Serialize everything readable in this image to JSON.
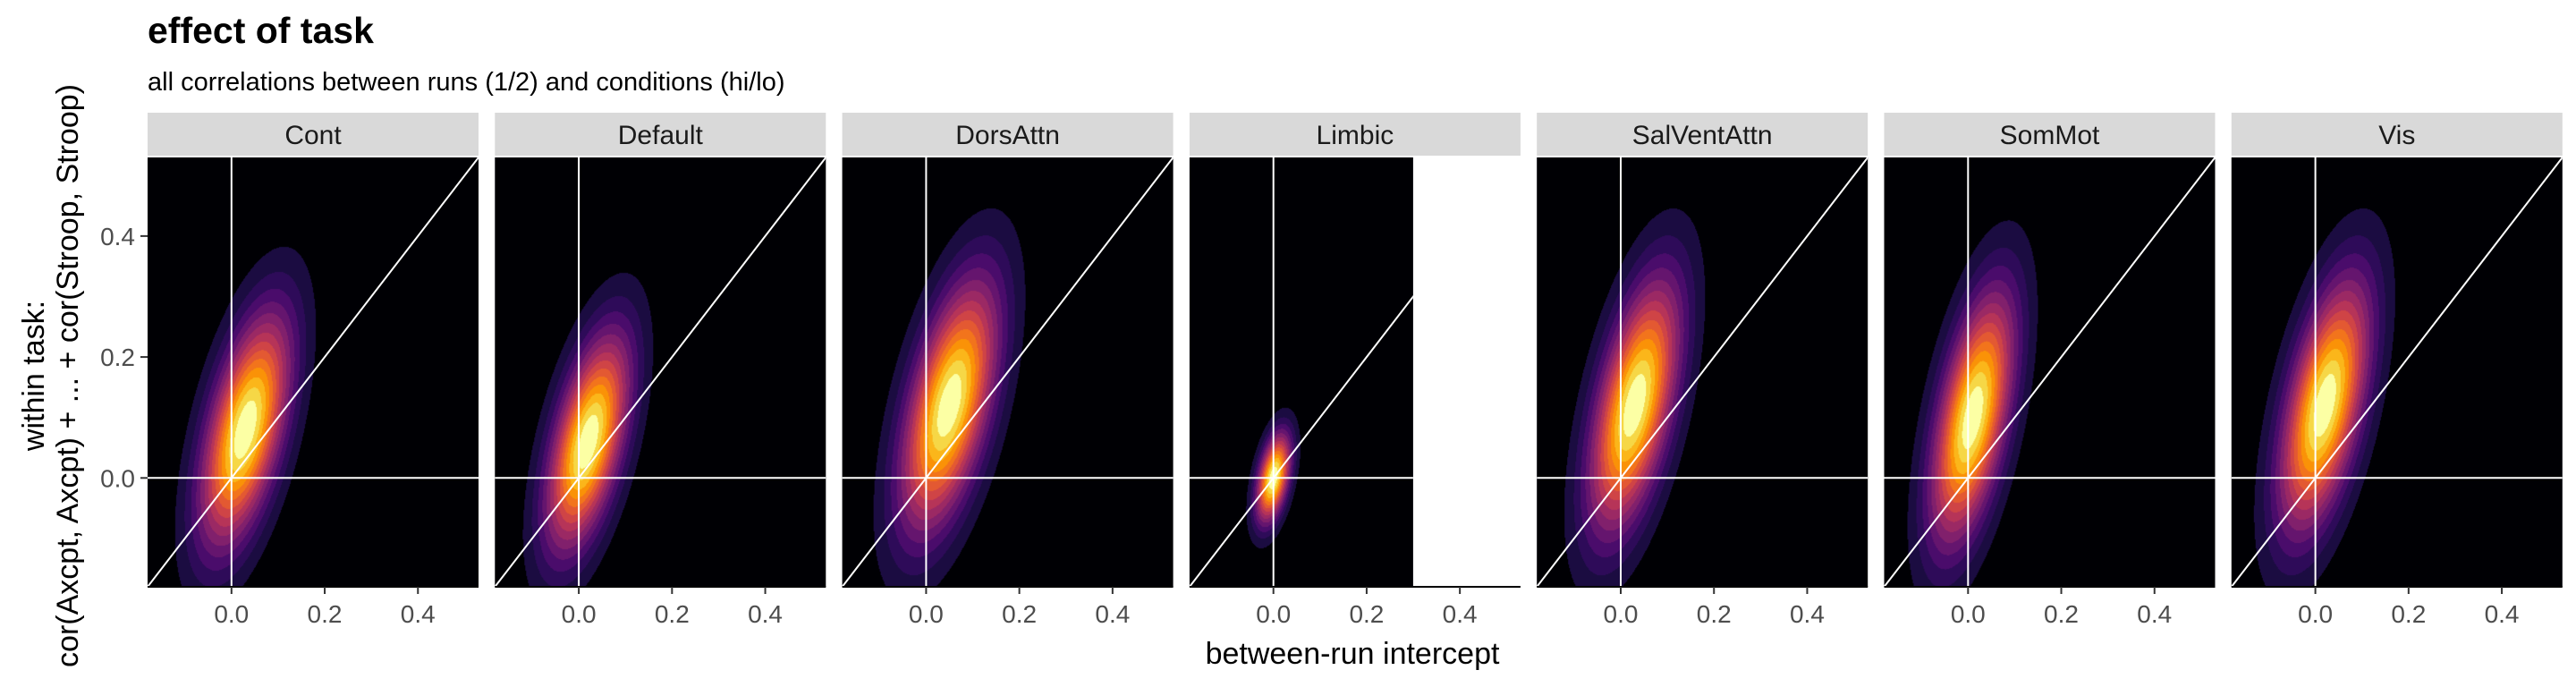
{
  "title": "effect of task",
  "subtitle": "all correlations between runs (1/2) and conditions (hi/lo)",
  "chart_data": {
    "type": "density2d",
    "title": "effect of task",
    "subtitle": "all correlations between runs (1/2) and conditions (hi/lo)",
    "xlabel": "between-run intercept",
    "ylabel_lines": [
      "within task:",
      "cor(Axcpt, Axcpt) + ... + cor(Stroop, Stroop)"
    ],
    "xlim": [
      -0.18,
      0.53
    ],
    "ylim": [
      -0.18,
      0.53
    ],
    "x_ticks": [
      0.0,
      0.2,
      0.4
    ],
    "x_tick_labels": [
      "0.0",
      "0.2",
      "0.4"
    ],
    "y_ticks": [
      0.0,
      0.2,
      0.4
    ],
    "y_tick_labels": [
      "0.0",
      "0.2",
      "0.4"
    ],
    "reference_lines": [
      "x = 0",
      "y = 0",
      "y = x"
    ],
    "colormap": [
      "#000004",
      "#1b0c41",
      "#2e0b59",
      "#4a0c6b",
      "#65156e",
      "#81206c",
      "#9b2964",
      "#b63458",
      "#cf4446",
      "#e35932",
      "#f2741c",
      "#fa9207",
      "#fbb61a",
      "#f6d746",
      "#fcffa4"
    ],
    "panels": [
      {
        "name": "Cont",
        "center": [
          0.03,
          0.08
        ],
        "sd": [
          0.065,
          0.13
        ],
        "rho": 0.55,
        "density_extent": {
          "x": [
            -0.18,
            0.53
          ],
          "y": [
            -0.18,
            0.53
          ]
        }
      },
      {
        "name": "Default",
        "center": [
          0.02,
          0.06
        ],
        "sd": [
          0.06,
          0.12
        ],
        "rho": 0.55,
        "density_extent": {
          "x": [
            -0.18,
            0.53
          ],
          "y": [
            -0.18,
            0.53
          ]
        }
      },
      {
        "name": "DorsAttn",
        "center": [
          0.05,
          0.12
        ],
        "sd": [
          0.07,
          0.14
        ],
        "rho": 0.55,
        "density_extent": {
          "x": [
            -0.18,
            0.53
          ],
          "y": [
            -0.18,
            0.53
          ]
        }
      },
      {
        "name": "Limbic",
        "center": [
          0.0,
          0.0
        ],
        "sd": [
          0.025,
          0.05
        ],
        "rho": 0.45,
        "density_extent": {
          "x": [
            -0.18,
            0.3
          ],
          "y": [
            -0.18,
            0.53
          ]
        }
      },
      {
        "name": "SalVentAttn",
        "center": [
          0.03,
          0.12
        ],
        "sd": [
          0.065,
          0.14
        ],
        "rho": 0.55,
        "density_extent": {
          "x": [
            -0.18,
            0.53
          ],
          "y": [
            -0.18,
            0.53
          ]
        }
      },
      {
        "name": "SomMot",
        "center": [
          0.01,
          0.1
        ],
        "sd": [
          0.06,
          0.14
        ],
        "rho": 0.55,
        "density_extent": {
          "x": [
            -0.18,
            0.53
          ],
          "y": [
            -0.18,
            0.53
          ]
        }
      },
      {
        "name": "Vis",
        "center": [
          0.02,
          0.12
        ],
        "sd": [
          0.065,
          0.14
        ],
        "rho": 0.55,
        "density_extent": {
          "x": [
            -0.18,
            0.53
          ],
          "y": [
            -0.18,
            0.53
          ]
        }
      }
    ]
  }
}
